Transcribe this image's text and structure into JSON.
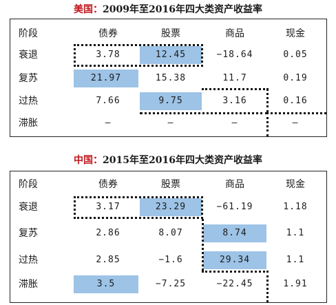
{
  "us": {
    "title_country": "美国：",
    "title_rest": "2009年至2016年四大类资产收益率",
    "headers": [
      "阶段",
      "债券",
      "股票",
      "商品",
      "现金"
    ],
    "rows": [
      [
        "衰退",
        "3.78",
        "12.45",
        "−18.64",
        "0.05"
      ],
      [
        "复苏",
        "21.97",
        "15.38",
        "11.7",
        "0.19"
      ],
      [
        "过热",
        "7.66",
        "9.75",
        "3.16",
        "0.16"
      ],
      [
        "滞胀",
        "–",
        "–",
        "–",
        "–"
      ]
    ]
  },
  "cn": {
    "title_country": "中国：",
    "title_rest": "2015年至2016年四大类资产收益率",
    "headers": [
      "阶段",
      "债券",
      "股票",
      "商品",
      "现金"
    ],
    "rows": [
      [
        "衰退",
        "3.17",
        "23.29",
        "−61.19",
        "1.18"
      ],
      [
        "复苏",
        "2.86",
        "8.07",
        "8.74",
        "1.1"
      ],
      [
        "过热",
        "2.85",
        "−1.6",
        "29.34",
        "1.1"
      ],
      [
        "滞胀",
        "3.5",
        "−7.25",
        "−22.45",
        "1.91"
      ]
    ]
  },
  "highlight_color": "#9dc3e6",
  "title_accent_color": "#c0171c"
}
